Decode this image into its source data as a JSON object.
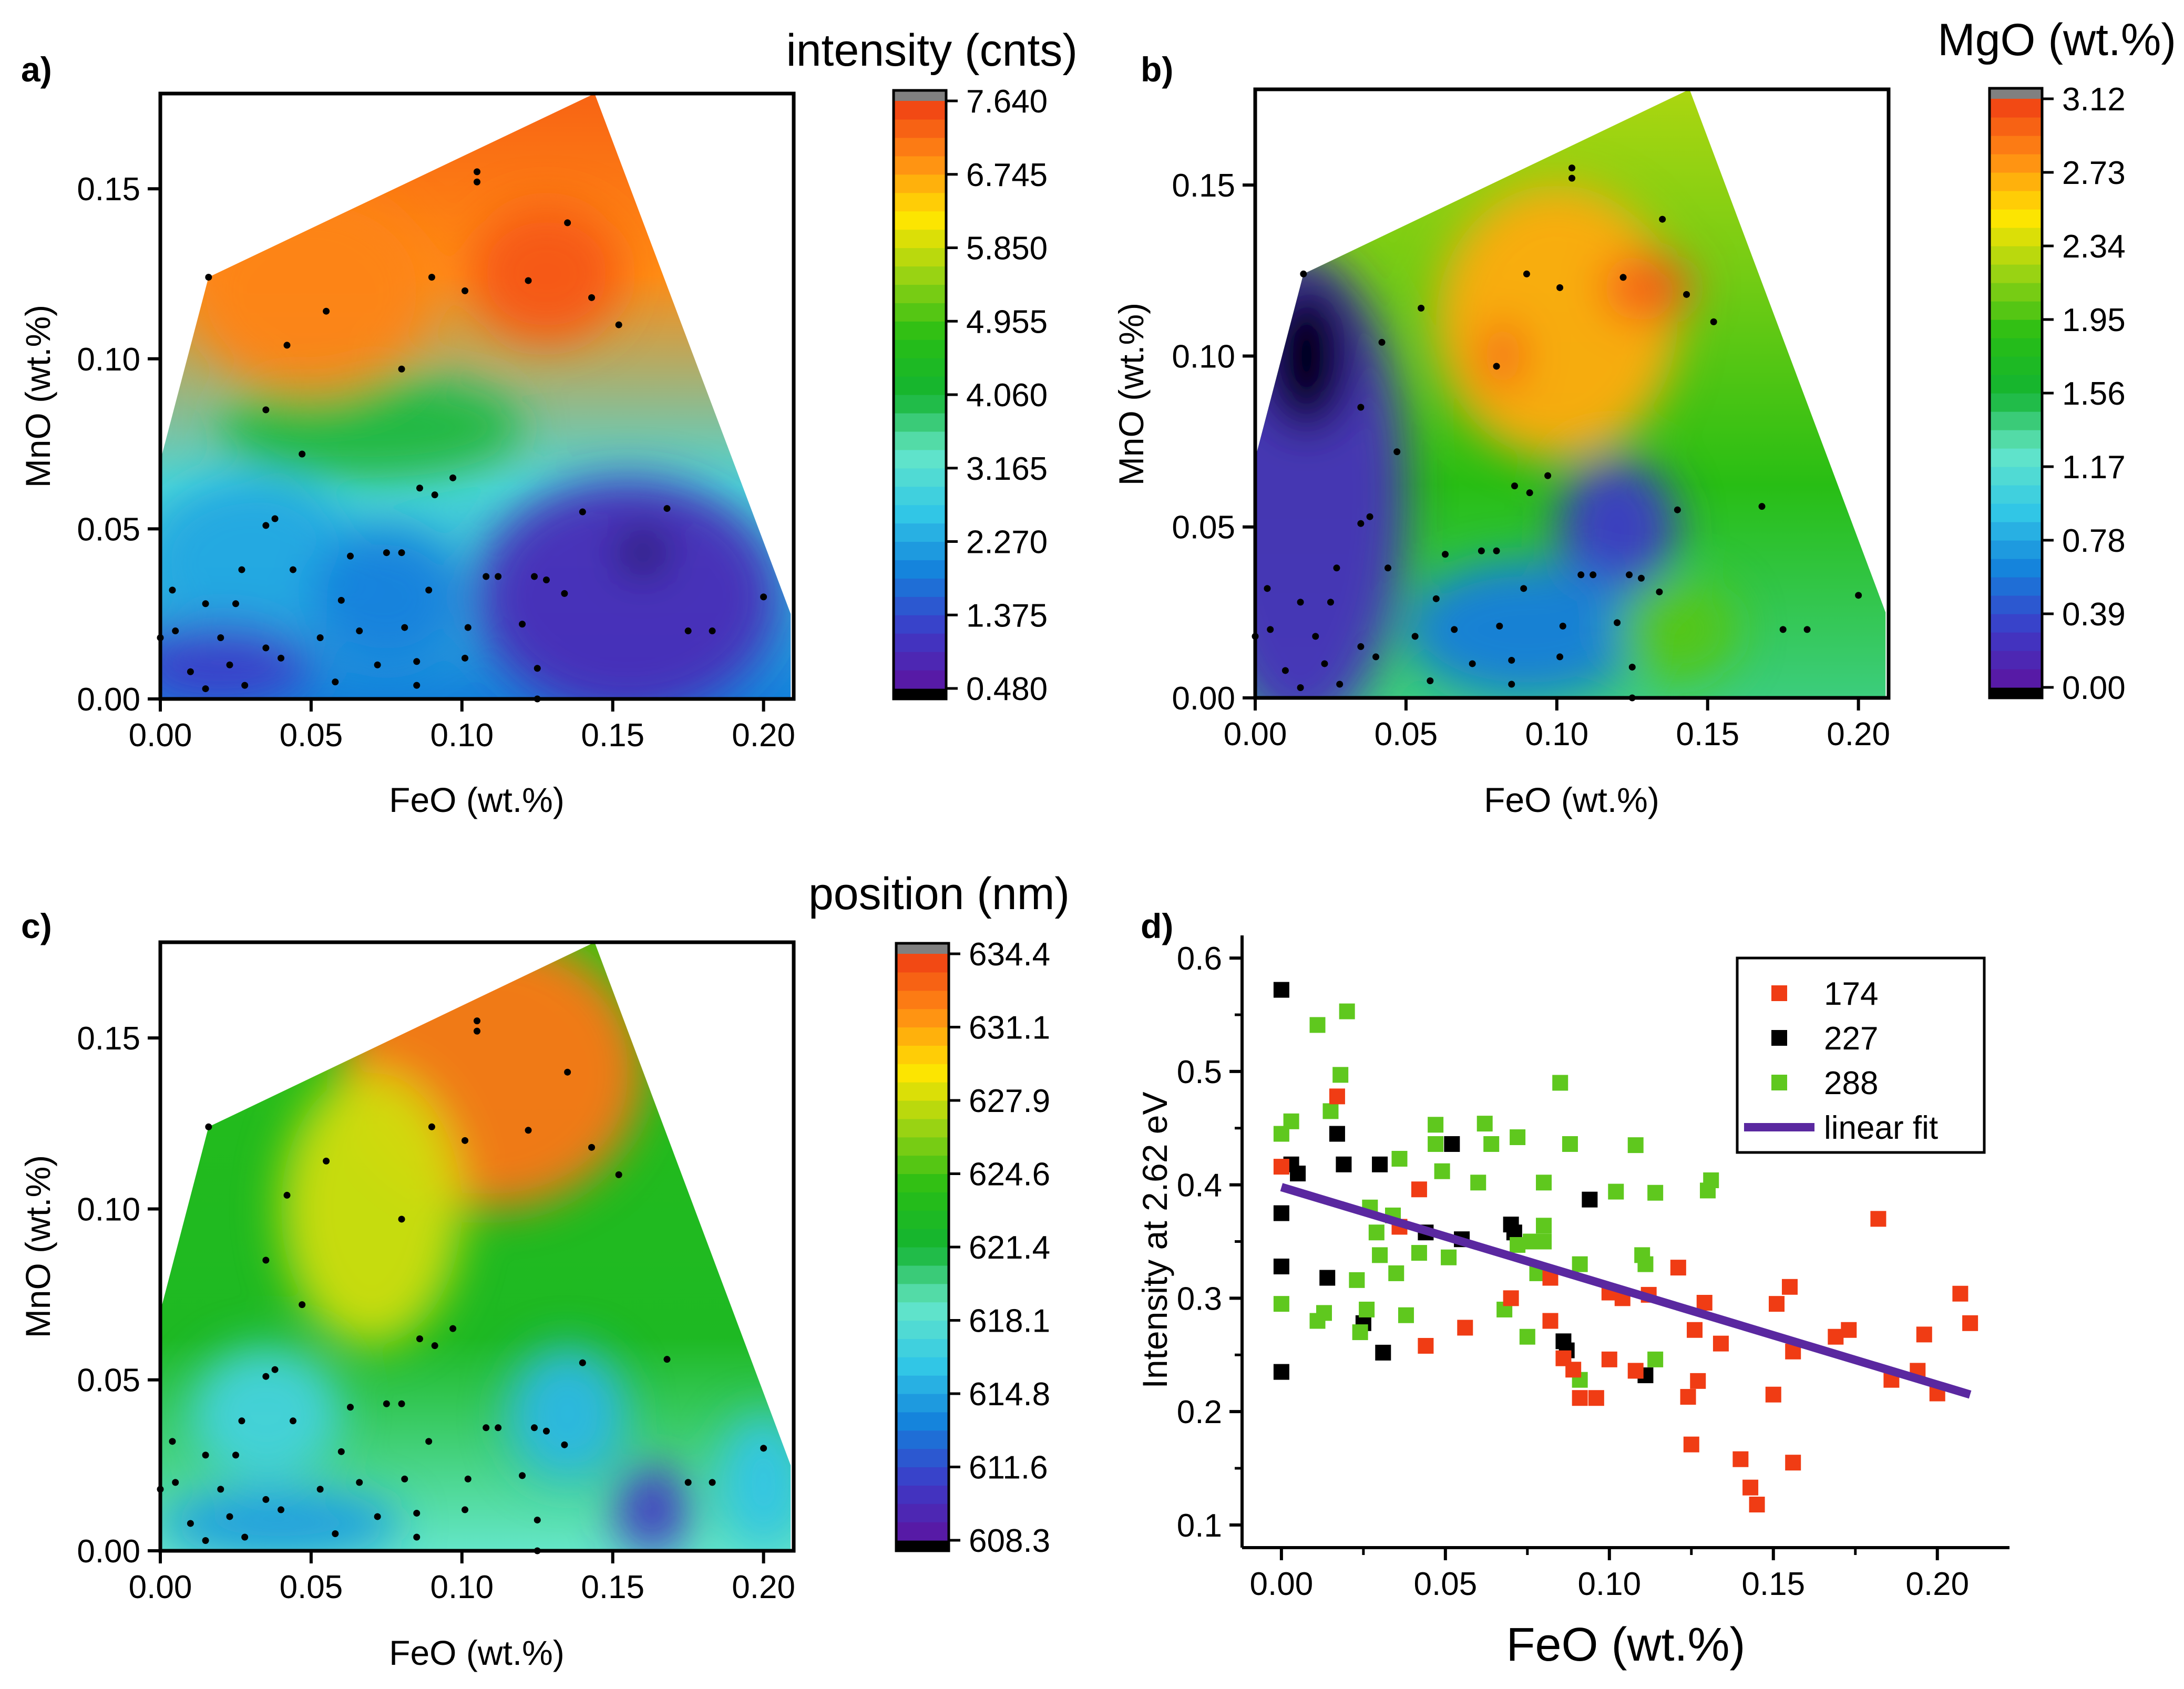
{
  "figure": {
    "panels": [
      {
        "id": "a",
        "label": "a)"
      },
      {
        "id": "b",
        "label": "b)"
      },
      {
        "id": "c",
        "label": "c)"
      },
      {
        "id": "d",
        "label": "d)"
      }
    ]
  },
  "colors": {
    "outside_range_low": "#000000",
    "outside_range_high": "#808080",
    "series_174": "#f03c14",
    "series_227": "#000000",
    "series_288": "#5fc81e",
    "fit_line": "#5a28a0",
    "sample_points": "#000000"
  },
  "chart_data": [
    {
      "panel": "a",
      "type": "heatmap",
      "subtype": "contour",
      "title": "intensity (cnts)",
      "xlabel": "FeO (wt.%)",
      "ylabel": "MnO (wt.%)",
      "xlim": [
        0,
        0.21
      ],
      "ylim": [
        0,
        0.178
      ],
      "xticks": [
        "0.00",
        "0.05",
        "0.10",
        "0.15",
        "0.20"
      ],
      "yticks": [
        "0.00",
        "0.05",
        "0.10",
        "0.15"
      ],
      "colorbar": {
        "min": 0.48,
        "max": 7.64,
        "ticks": [
          "0.480",
          "1.375",
          "2.270",
          "3.165",
          "4.060",
          "4.955",
          "5.850",
          "6.745",
          "7.640"
        ]
      },
      "hull": [
        [
          0,
          0
        ],
        [
          0.209,
          0
        ],
        [
          0.209,
          0.025
        ],
        [
          0.144,
          0.178
        ],
        [
          0.016,
          0.124
        ],
        [
          0,
          0.07
        ]
      ],
      "blobs": [
        {
          "cx": 0.155,
          "cy": 0.03,
          "rx": 0.05,
          "ry": 0.035,
          "value": 0.9
        },
        {
          "cx": 0.16,
          "cy": 0.043,
          "rx": 0.007,
          "ry": 0.006,
          "value": 0.1
        },
        {
          "cx": 0.03,
          "cy": 0.04,
          "rx": 0.035,
          "ry": 0.025,
          "value": 2.3
        },
        {
          "cx": 0.07,
          "cy": 0.08,
          "rx": 0.05,
          "ry": 0.015,
          "value": 4.0
        },
        {
          "cx": 0.05,
          "cy": 0.12,
          "rx": 0.04,
          "ry": 0.03,
          "value": 7.0
        },
        {
          "cx": 0.128,
          "cy": 0.125,
          "rx": 0.025,
          "ry": 0.02,
          "value": 7.4
        },
        {
          "cx": 0.075,
          "cy": 0.03,
          "rx": 0.025,
          "ry": 0.02,
          "value": 1.9
        },
        {
          "cx": 0.02,
          "cy": 0.01,
          "rx": 0.03,
          "ry": 0.012,
          "value": 1.2
        }
      ]
    },
    {
      "panel": "b",
      "type": "heatmap",
      "subtype": "contour",
      "title": "MgO (wt.%)",
      "xlabel": "FeO (wt.%)",
      "ylabel": "MnO (wt.%)",
      "xlim": [
        0,
        0.21
      ],
      "ylim": [
        0,
        0.178
      ],
      "xticks": [
        "0.00",
        "0.05",
        "0.10",
        "0.15",
        "0.20"
      ],
      "yticks": [
        "0.00",
        "0.05",
        "0.10",
        "0.15"
      ],
      "colorbar": {
        "min": 0.0,
        "max": 3.12,
        "ticks": [
          "0.00",
          "0.39",
          "0.78",
          "1.17",
          "1.56",
          "1.95",
          "2.34",
          "2.73",
          "3.12"
        ]
      },
      "hull": [
        [
          0,
          0
        ],
        [
          0.209,
          0
        ],
        [
          0.209,
          0.025
        ],
        [
          0.144,
          0.178
        ],
        [
          0.016,
          0.124
        ],
        [
          0,
          0.07
        ]
      ],
      "blobs": [
        {
          "cx": 0.015,
          "cy": 0.06,
          "rx": 0.035,
          "ry": 0.07,
          "value": 0.2
        },
        {
          "cx": 0.017,
          "cy": 0.1,
          "rx": 0.015,
          "ry": 0.022,
          "value": -0.1
        },
        {
          "cx": 0.12,
          "cy": 0.05,
          "rx": 0.02,
          "ry": 0.02,
          "value": 0.3
        },
        {
          "cx": 0.09,
          "cy": 0.02,
          "rx": 0.04,
          "ry": 0.02,
          "value": 0.6
        },
        {
          "cx": 0.1,
          "cy": 0.11,
          "rx": 0.04,
          "ry": 0.04,
          "value": 2.7
        },
        {
          "cx": 0.13,
          "cy": 0.12,
          "rx": 0.015,
          "ry": 0.01,
          "value": 3.0
        },
        {
          "cx": 0.082,
          "cy": 0.1,
          "rx": 0.007,
          "ry": 0.01,
          "value": 3.0
        },
        {
          "cx": 0.14,
          "cy": 0.02,
          "rx": 0.02,
          "ry": 0.015,
          "value": 2.0
        }
      ]
    },
    {
      "panel": "c",
      "type": "heatmap",
      "subtype": "contour",
      "title": "position (nm)",
      "xlabel": "FeO (wt.%)",
      "ylabel": "MnO (wt.%)",
      "xlim": [
        0,
        0.21
      ],
      "ylim": [
        0,
        0.178
      ],
      "xticks": [
        "0.00",
        "0.05",
        "0.10",
        "0.15",
        "0.20"
      ],
      "yticks": [
        "0.00",
        "0.05",
        "0.10",
        "0.15"
      ],
      "colorbar": {
        "min": 608.3,
        "max": 634.4,
        "ticks": [
          "608.3",
          "611.6",
          "614.8",
          "618.1",
          "621.4",
          "624.6",
          "627.9",
          "631.1",
          "634.4"
        ]
      },
      "hull": [
        [
          0,
          0
        ],
        [
          0.209,
          0
        ],
        [
          0.209,
          0.025
        ],
        [
          0.144,
          0.178
        ],
        [
          0.016,
          0.124
        ],
        [
          0,
          0.07
        ]
      ],
      "blobs": [
        {
          "cx": 0.11,
          "cy": 0.14,
          "rx": 0.05,
          "ry": 0.04,
          "value": 632.5
        },
        {
          "cx": 0.07,
          "cy": 0.1,
          "rx": 0.03,
          "ry": 0.04,
          "value": 628.0
        },
        {
          "cx": 0.163,
          "cy": 0.012,
          "rx": 0.012,
          "ry": 0.013,
          "value": 610.5
        },
        {
          "cx": 0.135,
          "cy": 0.04,
          "rx": 0.02,
          "ry": 0.02,
          "value": 615.5
        },
        {
          "cx": 0.035,
          "cy": 0.04,
          "rx": 0.025,
          "ry": 0.02,
          "value": 617.0
        },
        {
          "cx": 0.04,
          "cy": 0.008,
          "rx": 0.04,
          "ry": 0.01,
          "value": 614.5
        },
        {
          "cx": 0.2,
          "cy": 0.02,
          "rx": 0.015,
          "ry": 0.02,
          "value": 616.0
        }
      ]
    },
    {
      "panel": "d",
      "type": "scatter",
      "xlabel": "FeO (wt.%)",
      "ylabel": "Intensity at 2.62 eV",
      "xlim": [
        -0.012,
        0.222
      ],
      "ylim": [
        0.08,
        0.62
      ],
      "xticks": [
        "0.00",
        "0.05",
        "0.10",
        "0.15",
        "0.20"
      ],
      "yticks": [
        "0.1",
        "0.2",
        "0.3",
        "0.4",
        "0.5",
        "0.6"
      ],
      "legend": {
        "location": "top-right",
        "entries": [
          "174",
          "227",
          "288",
          "linear fit"
        ]
      },
      "series": [
        {
          "name": "174",
          "color_key": "series_174",
          "points": [
            [
              0.0,
              0.416
            ],
            [
              0.017,
              0.478
            ],
            [
              0.042,
              0.396
            ],
            [
              0.036,
              0.363
            ],
            [
              0.044,
              0.258
            ],
            [
              0.056,
              0.274
            ],
            [
              0.07,
              0.3
            ],
            [
              0.082,
              0.318
            ],
            [
              0.082,
              0.28
            ],
            [
              0.086,
              0.247
            ],
            [
              0.089,
              0.237
            ],
            [
              0.091,
              0.212
            ],
            [
              0.096,
              0.212
            ],
            [
              0.1,
              0.305
            ],
            [
              0.104,
              0.3
            ],
            [
              0.1,
              0.246
            ],
            [
              0.108,
              0.236
            ],
            [
              0.112,
              0.303
            ],
            [
              0.121,
              0.327
            ],
            [
              0.124,
              0.213
            ],
            [
              0.125,
              0.171
            ],
            [
              0.126,
              0.272
            ],
            [
              0.127,
              0.227
            ],
            [
              0.129,
              0.296
            ],
            [
              0.134,
              0.26
            ],
            [
              0.14,
              0.158
            ],
            [
              0.143,
              0.133
            ],
            [
              0.145,
              0.118
            ],
            [
              0.15,
              0.215
            ],
            [
              0.151,
              0.295
            ],
            [
              0.155,
              0.31
            ],
            [
              0.156,
              0.155
            ],
            [
              0.156,
              0.253
            ],
            [
              0.169,
              0.266
            ],
            [
              0.173,
              0.272
            ],
            [
              0.182,
              0.37
            ],
            [
              0.186,
              0.228
            ],
            [
              0.194,
              0.236
            ],
            [
              0.196,
              0.268
            ],
            [
              0.2,
              0.216
            ],
            [
              0.207,
              0.304
            ],
            [
              0.21,
              0.278
            ]
          ]
        },
        {
          "name": "227",
          "color_key": "series_227",
          "points": [
            [
              0.0,
              0.572
            ],
            [
              0.0,
              0.375
            ],
            [
              0.0,
              0.328
            ],
            [
              0.0,
              0.235
            ],
            [
              0.003,
              0.418
            ],
            [
              0.005,
              0.41
            ],
            [
              0.014,
              0.318
            ],
            [
              0.017,
              0.445
            ],
            [
              0.019,
              0.418
            ],
            [
              0.025,
              0.278
            ],
            [
              0.03,
              0.418
            ],
            [
              0.031,
              0.252
            ],
            [
              0.044,
              0.358
            ],
            [
              0.052,
              0.436
            ],
            [
              0.055,
              0.352
            ],
            [
              0.07,
              0.365
            ],
            [
              0.071,
              0.358
            ],
            [
              0.086,
              0.262
            ],
            [
              0.087,
              0.254
            ],
            [
              0.094,
              0.387
            ],
            [
              0.111,
              0.232
            ]
          ]
        },
        {
          "name": "288",
          "color_key": "series_288",
          "points": [
            [
              0.0,
              0.445
            ],
            [
              0.0,
              0.295
            ],
            [
              0.003,
              0.456
            ],
            [
              0.011,
              0.541
            ],
            [
              0.011,
              0.28
            ],
            [
              0.013,
              0.287
            ],
            [
              0.015,
              0.465
            ],
            [
              0.018,
              0.497
            ],
            [
              0.02,
              0.553
            ],
            [
              0.023,
              0.316
            ],
            [
              0.024,
              0.27
            ],
            [
              0.026,
              0.29
            ],
            [
              0.027,
              0.38
            ],
            [
              0.029,
              0.358
            ],
            [
              0.03,
              0.338
            ],
            [
              0.034,
              0.373
            ],
            [
              0.035,
              0.322
            ],
            [
              0.036,
              0.423
            ],
            [
              0.038,
              0.285
            ],
            [
              0.042,
              0.34
            ],
            [
              0.047,
              0.453
            ],
            [
              0.047,
              0.436
            ],
            [
              0.049,
              0.412
            ],
            [
              0.051,
              0.336
            ],
            [
              0.06,
              0.402
            ],
            [
              0.062,
              0.454
            ],
            [
              0.064,
              0.436
            ],
            [
              0.068,
              0.29
            ],
            [
              0.072,
              0.442
            ],
            [
              0.072,
              0.347
            ],
            [
              0.075,
              0.266
            ],
            [
              0.076,
              0.35
            ],
            [
              0.078,
              0.322
            ],
            [
              0.08,
              0.364
            ],
            [
              0.08,
              0.402
            ],
            [
              0.08,
              0.35
            ],
            [
              0.085,
              0.49
            ],
            [
              0.088,
              0.436
            ],
            [
              0.091,
              0.228
            ],
            [
              0.091,
              0.33
            ],
            [
              0.102,
              0.394
            ],
            [
              0.108,
              0.435
            ],
            [
              0.11,
              0.338
            ],
            [
              0.111,
              0.33
            ],
            [
              0.114,
              0.246
            ],
            [
              0.114,
              0.393
            ],
            [
              0.13,
              0.395
            ],
            [
              0.131,
              0.404
            ]
          ]
        }
      ],
      "fit": {
        "name": "linear fit",
        "color_key": "fit_line",
        "x": [
          0.0,
          0.21
        ],
        "y": [
          0.398,
          0.215
        ]
      }
    }
  ]
}
